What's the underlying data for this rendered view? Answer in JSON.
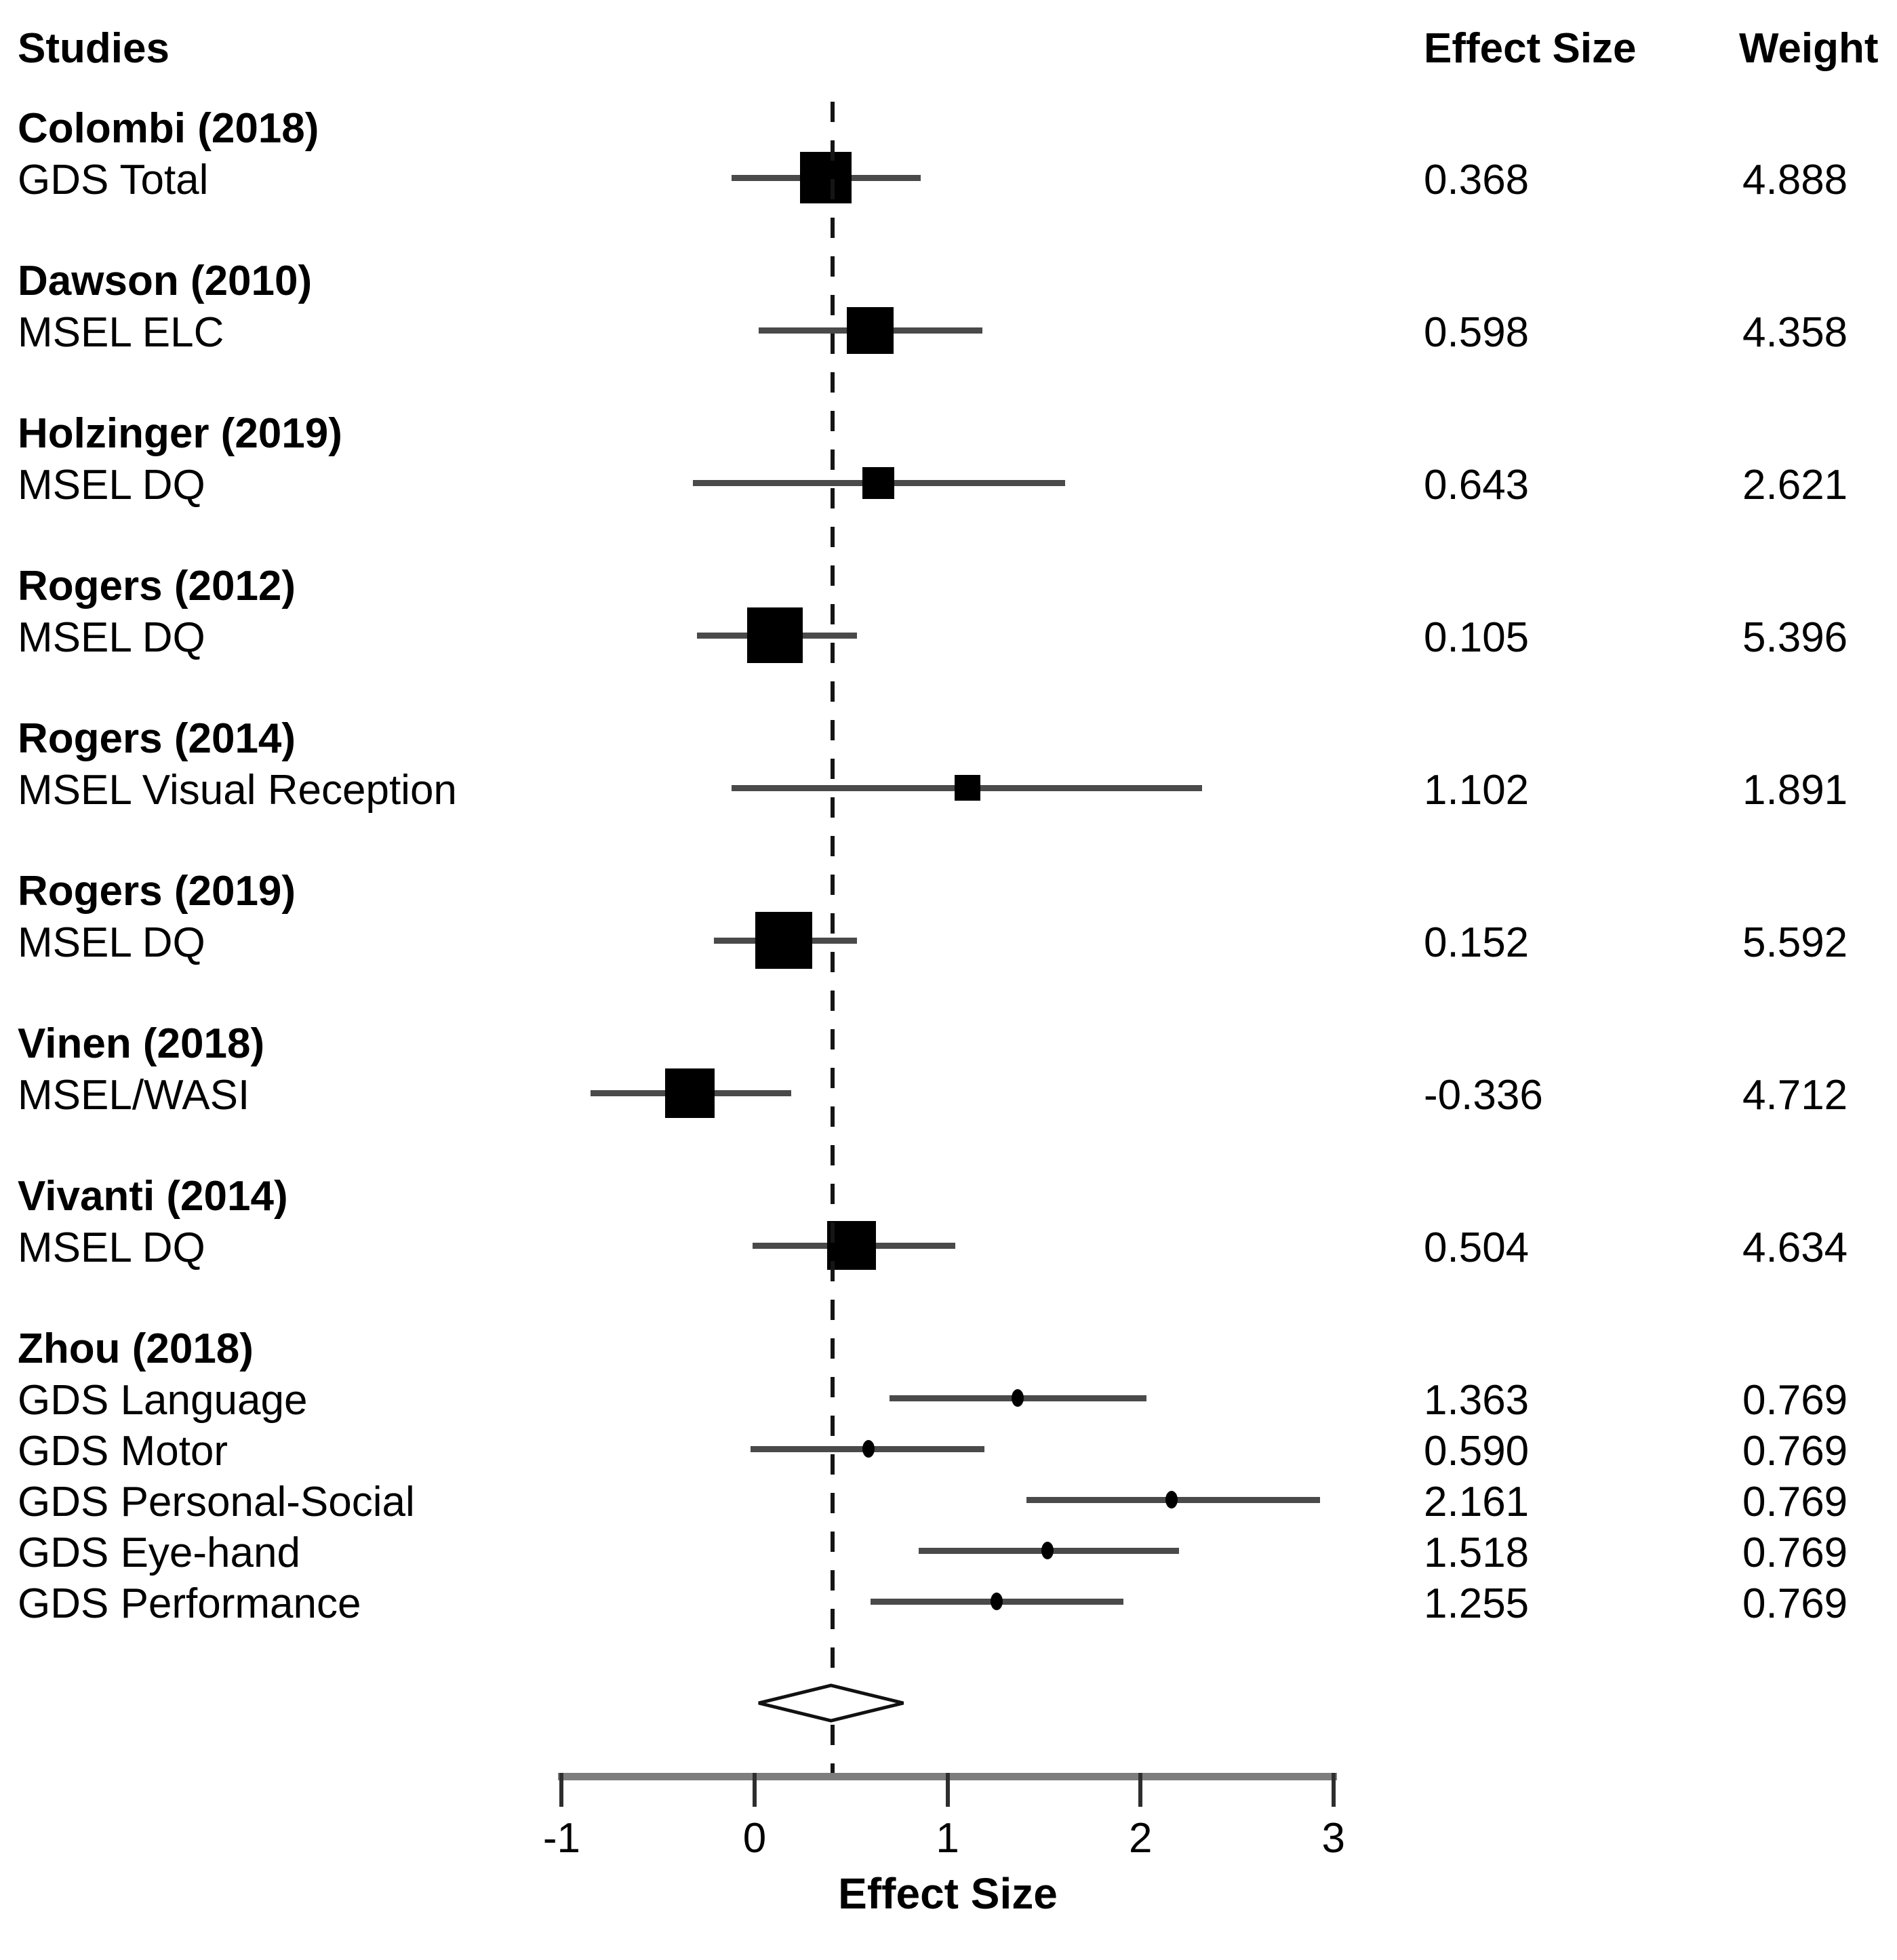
{
  "chart_data": {
    "type": "forest",
    "title": "",
    "xlabel": "Effect Size",
    "x_ticks": [
      -1,
      0,
      1,
      2,
      3
    ],
    "xlim": [
      -1,
      3
    ],
    "grid": false,
    "legend": "none",
    "dashed_reference_line_x": 0.405,
    "columns": {
      "studies": "Studies",
      "effect_size": "Effect Size",
      "weight": "Weight"
    },
    "colors": {
      "marker": "#000000",
      "ci_line": "#4a4a4a",
      "axis": "#7d7d7d",
      "text": "#000000",
      "diamond_fill": "#ffffff",
      "diamond_stroke": "#111111"
    },
    "studies": [
      {
        "name": "Colombi (2018)",
        "rows": [
          {
            "measure": "GDS Total",
            "effect": 0.368,
            "weight": 4.888,
            "ci_low": -0.12,
            "ci_high": 0.86,
            "marker": "square"
          }
        ]
      },
      {
        "name": "Dawson (2010)",
        "rows": [
          {
            "measure": "MSEL ELC",
            "effect": 0.598,
            "weight": 4.358,
            "ci_low": 0.02,
            "ci_high": 1.18,
            "marker": "square"
          }
        ]
      },
      {
        "name": "Holzinger (2019)",
        "rows": [
          {
            "measure": "MSEL DQ",
            "effect": 0.643,
            "weight": 2.621,
            "ci_low": -0.32,
            "ci_high": 1.61,
            "marker": "square"
          }
        ]
      },
      {
        "name": "Rogers (2012)",
        "rows": [
          {
            "measure": "MSEL DQ",
            "effect": 0.105,
            "weight": 5.396,
            "ci_low": -0.3,
            "ci_high": 0.53,
            "marker": "square"
          }
        ]
      },
      {
        "name": "Rogers (2014)",
        "rows": [
          {
            "measure": "MSEL Visual Reception",
            "effect": 1.102,
            "weight": 1.891,
            "ci_low": -0.12,
            "ci_high": 2.32,
            "marker": "square"
          }
        ]
      },
      {
        "name": "Rogers (2019)",
        "rows": [
          {
            "measure": "MSEL DQ",
            "effect": 0.152,
            "weight": 5.592,
            "ci_low": -0.21,
            "ci_high": 0.53,
            "marker": "square"
          }
        ]
      },
      {
        "name": "Vinen (2018)",
        "rows": [
          {
            "measure": "MSEL/WASI",
            "effect": -0.336,
            "weight": 4.712,
            "ci_low": -0.85,
            "ci_high": 0.19,
            "marker": "square"
          }
        ]
      },
      {
        "name": "Vivanti (2014)",
        "rows": [
          {
            "measure": "MSEL DQ",
            "effect": 0.504,
            "weight": 4.634,
            "ci_low": -0.01,
            "ci_high": 1.04,
            "marker": "square"
          }
        ]
      },
      {
        "name": "Zhou (2018)",
        "rows": [
          {
            "measure": "GDS Language",
            "effect": 1.363,
            "weight": 0.769,
            "ci_low": 0.7,
            "ci_high": 2.03,
            "marker": "dot"
          },
          {
            "measure": "GDS Motor",
            "effect": 0.59,
            "weight": 0.769,
            "ci_low": -0.02,
            "ci_high": 1.19,
            "marker": "dot"
          },
          {
            "measure": "GDS Personal-Social",
            "effect": 2.161,
            "weight": 0.769,
            "ci_low": 1.41,
            "ci_high": 2.93,
            "marker": "dot"
          },
          {
            "measure": "GDS Eye-hand",
            "effect": 1.518,
            "weight": 0.769,
            "ci_low": 0.85,
            "ci_high": 2.2,
            "marker": "dot"
          },
          {
            "measure": "GDS Performance",
            "effect": 1.255,
            "weight": 0.769,
            "ci_low": 0.6,
            "ci_high": 1.91,
            "marker": "dot"
          }
        ]
      }
    ],
    "summary": {
      "shape": "diamond",
      "effect": 0.4,
      "ci_low": 0.02,
      "ci_high": 0.77
    }
  }
}
